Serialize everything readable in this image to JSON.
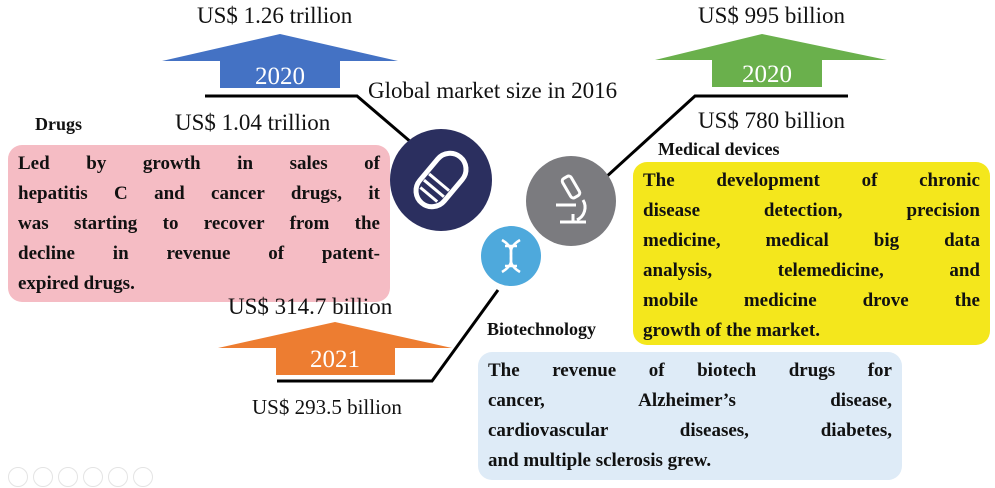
{
  "title": "Global market size in 2016",
  "colors": {
    "drugs_arrow": "#4472c4",
    "devices_arrow": "#6ab04c",
    "biotech_arrow": "#ed7d31",
    "drugs_box": "#f5bcc4",
    "devices_box": "#f4e71c",
    "biotech_box": "#deebf7",
    "drugs_circle": "#2b2f5f",
    "biotech_circle": "#4ea9dc",
    "devices_circle": "#7b7b7f"
  },
  "drugs": {
    "heading": "Drugs",
    "value_2016": "US$ 1.04 trillion",
    "forecast_year": "2020",
    "forecast_value": "US$ 1.26 trillion",
    "icon": "pill-icon",
    "description_lines": [
      "Led by growth in sales of",
      "hepatitis C and cancer drugs, it",
      "was starting to recover from the",
      "decline in revenue of patent-",
      "expired drugs."
    ]
  },
  "devices": {
    "heading": "Medical devices",
    "value_2016": "US$ 780 billion",
    "forecast_year": "2020",
    "forecast_value": "US$ 995 billion",
    "icon": "microscope-icon",
    "description_lines": [
      "The development of chronic",
      "disease detection, precision",
      "medicine, medical big data",
      "analysis, telemedicine, and",
      "mobile medicine drove the",
      "growth of the market."
    ]
  },
  "biotech": {
    "heading": "Biotechnology",
    "value_2016": "US$ 293.5 billion",
    "forecast_year": "2021",
    "forecast_value": "US$ 314.7 billion",
    "icon": "dna-icon",
    "description_lines": [
      "The revenue of biotech drugs for",
      "cancer, Alzheimer’s disease,",
      "cardiovascular diseases, diabetes,",
      "and multiple sclerosis grew."
    ]
  }
}
